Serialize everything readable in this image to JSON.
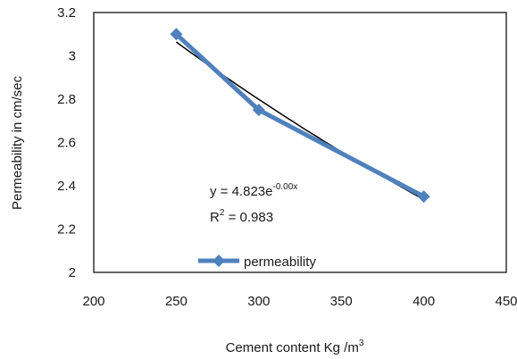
{
  "chart_data": {
    "type": "scatter",
    "title": "",
    "xlabel": "Cement content Kg /m",
    "xlabel_superscript": "3",
    "ylabel": "Permeability in cm/sec",
    "xlim": [
      200,
      450
    ],
    "ylim": [
      2,
      3.2
    ],
    "x_ticks": [
      "200",
      "250",
      "300",
      "350",
      "400",
      "450"
    ],
    "y_ticks": [
      "2",
      "2.2",
      "2.4",
      "2.6",
      "2.8",
      "3",
      "3.2"
    ],
    "x": [
      250,
      300,
      400
    ],
    "series": [
      {
        "name": "permeability",
        "values": [
          3.1,
          2.75,
          2.35
        ],
        "color": "#4f81bd",
        "marker": "diamond"
      }
    ],
    "trendline": {
      "type": "exponential",
      "color": "#000000",
      "equation_text": "y = 4.823e",
      "equation_exponent": "-0.00x",
      "r_squared_label": "R",
      "r_squared_text": " = 0.983"
    },
    "legend": {
      "position": "bottom-center",
      "label": "permeability"
    },
    "grid": false,
    "border_color": "#000000"
  }
}
